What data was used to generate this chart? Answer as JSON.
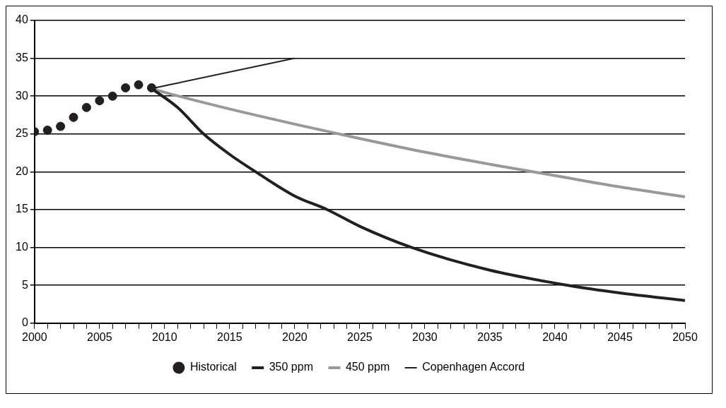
{
  "chart_data": {
    "type": "line",
    "xlim": [
      2000,
      2050
    ],
    "ylim": [
      0,
      40
    ],
    "xticks": [
      2000,
      {
        "value": 2001,
        "label": null
      },
      {
        "value": 2002,
        "label": null
      },
      {
        "value": 2003,
        "label": null
      },
      {
        "value": 2004,
        "label": null
      },
      2005,
      {
        "value": 2006,
        "label": null
      },
      {
        "value": 2007,
        "label": null
      },
      {
        "value": 2008,
        "label": null
      },
      {
        "value": 2009,
        "label": null
      },
      2010,
      {
        "value": 2011,
        "label": null
      },
      {
        "value": 2012,
        "label": null
      },
      {
        "value": 2013,
        "label": null
      },
      {
        "value": 2014,
        "label": null
      },
      2015,
      {
        "value": 2016,
        "label": null
      },
      {
        "value": 2017,
        "label": null
      },
      {
        "value": 2018,
        "label": null
      },
      {
        "value": 2019,
        "label": null
      },
      2020,
      {
        "value": 2021,
        "label": null
      },
      {
        "value": 2022,
        "label": null
      },
      {
        "value": 2023,
        "label": null
      },
      {
        "value": 2024,
        "label": null
      },
      2025,
      {
        "value": 2026,
        "label": null
      },
      {
        "value": 2027,
        "label": null
      },
      {
        "value": 2028,
        "label": null
      },
      {
        "value": 2029,
        "label": null
      },
      2030,
      {
        "value": 2031,
        "label": null
      },
      {
        "value": 2032,
        "label": null
      },
      {
        "value": 2033,
        "label": null
      },
      {
        "value": 2034,
        "label": null
      },
      2035,
      {
        "value": 2036,
        "label": null
      },
      {
        "value": 2037,
        "label": null
      },
      {
        "value": 2038,
        "label": null
      },
      {
        "value": 2039,
        "label": null
      },
      2040,
      {
        "value": 2041,
        "label": null
      },
      {
        "value": 2042,
        "label": null
      },
      {
        "value": 2043,
        "label": null
      },
      {
        "value": 2044,
        "label": null
      },
      2045,
      {
        "value": 2046,
        "label": null
      },
      {
        "value": 2047,
        "label": null
      },
      {
        "value": 2048,
        "label": null
      },
      {
        "value": 2049,
        "label": null
      },
      2050
    ],
    "yticks": [
      0,
      5,
      10,
      15,
      20,
      25,
      30,
      35,
      40
    ],
    "grid": "y",
    "legend": "bottom",
    "series": [
      {
        "name": "Historical",
        "type": "scatter",
        "marker": "circle",
        "color": "#231f20",
        "x": [
          2000,
          2001,
          2002,
          2003,
          2004,
          2005,
          2006,
          2007,
          2008,
          2009
        ],
        "values": [
          25.3,
          25.5,
          26.0,
          27.2,
          28.5,
          29.4,
          30.0,
          31.1,
          31.5,
          31.1
        ]
      },
      {
        "name": "350 ppm",
        "type": "line",
        "marker": "none",
        "color": "#231f20",
        "x": [
          2009,
          2011,
          2013,
          2015,
          2017,
          2020,
          2022.5,
          2025,
          2029,
          2035,
          2041,
          2045,
          2050
        ],
        "values": [
          31,
          28.5,
          25,
          22.3,
          20,
          16.8,
          15,
          12.8,
          10,
          7,
          5,
          4,
          3
        ]
      },
      {
        "name": "450 ppm",
        "type": "line",
        "marker": "none",
        "color": "#999999",
        "x": [
          2009,
          2010,
          2015,
          2020,
          2025,
          2030,
          2035,
          2040,
          2045,
          2050
        ],
        "values": [
          31,
          30.5,
          28.3,
          26.3,
          24.4,
          22.6,
          21.0,
          19.5,
          18.0,
          16.7
        ]
      },
      {
        "name": "Copenhagen Accord",
        "type": "line",
        "marker": "none",
        "color": "#231f20",
        "x": [
          2009,
          2020
        ],
        "values": [
          31,
          35
        ]
      }
    ]
  }
}
